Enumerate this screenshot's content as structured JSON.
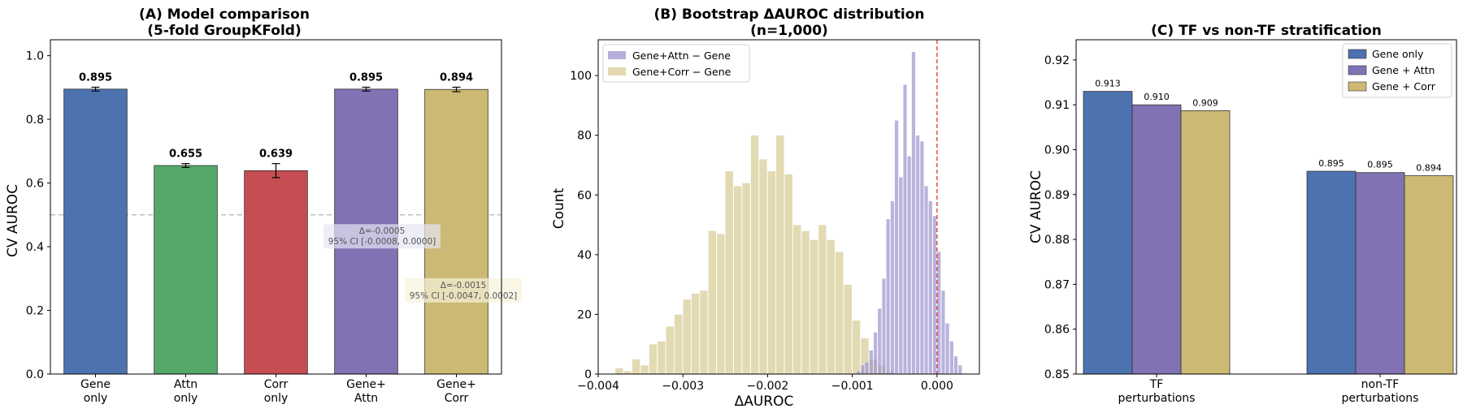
{
  "chart_data": [
    {
      "type": "bar",
      "title": "(A) Model comparison",
      "subtitle": "(5-fold GroupKFold)",
      "xlabel": "",
      "ylabel": "CV AUROC",
      "ylim": [
        0,
        1.05
      ],
      "yticks": [
        "0.0",
        "0.2",
        "0.4",
        "0.6",
        "0.8",
        "1.0"
      ],
      "categories": [
        {
          "line1": "Gene",
          "line2": "only"
        },
        {
          "line1": "Attn",
          "line2": "only"
        },
        {
          "line1": "Corr",
          "line2": "only"
        },
        {
          "line1": "Gene+",
          "line2": "Attn"
        },
        {
          "line1": "Gene+",
          "line2": "Corr"
        }
      ],
      "values": [
        0.895,
        0.655,
        0.639,
        0.895,
        0.894
      ],
      "errors": [
        0.006,
        0.006,
        0.022,
        0.006,
        0.007
      ],
      "value_labels": [
        "0.895",
        "0.655",
        "0.639",
        "0.895",
        "0.894"
      ],
      "colors": [
        "#4c72b0",
        "#55a868",
        "#c44e52",
        "#8172b3",
        "#ccb974"
      ],
      "reference_line": 0.5,
      "annotations": [
        {
          "line1": "Δ=-0.0005",
          "line2": "95% CI [-0.0008, 0.0000]",
          "y": 0.42,
          "fill": "#e6e6f5"
        },
        {
          "line1": "Δ=-0.0015",
          "line2": "95% CI [-0.0047, 0.0002]",
          "y": 0.25,
          "fill": "#f7f2dc"
        }
      ]
    },
    {
      "type": "histogram",
      "title": "(B) Bootstrap ΔAUROC distribution",
      "subtitle": "(n=1,000)",
      "xlabel": "ΔAUROC",
      "ylabel": "Count",
      "xlim": [
        -0.004,
        0.0005
      ],
      "ylim": [
        0,
        112
      ],
      "xticks": [
        "−0.004",
        "−0.003",
        "−0.002",
        "−0.001",
        "0.000"
      ],
      "yticks": [
        "0",
        "20",
        "40",
        "60",
        "80",
        "100"
      ],
      "reference_x": 0.0,
      "legend_position": "top-left",
      "series": [
        {
          "name": "Gene+Attn − Gene",
          "color": "#9d94cf",
          "bin_start": -0.00095,
          "bin_width": 5e-05,
          "counts": [
            1,
            3,
            4,
            8,
            14,
            22,
            32,
            52,
            58,
            85,
            66,
            97,
            73,
            108,
            80,
            78,
            63,
            58,
            53,
            41,
            28,
            17,
            11,
            6,
            3
          ]
        },
        {
          "name": "Gene+Corr − Gene",
          "color": "#d8cc95",
          "bin_start": -0.0038,
          "bin_width": 0.0001,
          "counts": [
            2,
            1,
            5,
            3,
            10,
            11,
            16,
            20,
            25,
            27,
            28,
            48,
            47,
            68,
            63,
            64,
            80,
            72,
            68,
            80,
            67,
            50,
            48,
            45,
            50,
            45,
            41,
            30,
            18,
            12,
            5,
            3,
            1
          ]
        }
      ]
    },
    {
      "type": "bar",
      "title": "(C) TF vs non-TF stratification",
      "xlabel": "",
      "ylabel": "CV AUROC",
      "ylim": [
        0.85,
        0.9245
      ],
      "yticks": [
        "0.85",
        "0.86",
        "0.87",
        "0.88",
        "0.89",
        "0.90",
        "0.91",
        "0.92"
      ],
      "categories": [
        {
          "line1": "TF",
          "line2": "perturbations"
        },
        {
          "line1": "non-TF",
          "line2": "perturbations"
        }
      ],
      "legend_position": "top-right",
      "series": [
        {
          "name": "Gene only",
          "color": "#4c72b0",
          "values": [
            0.913,
            0.8952
          ],
          "labels": [
            "0.913",
            "0.895"
          ]
        },
        {
          "name": "Gene + Attn",
          "color": "#8172b3",
          "values": [
            0.91,
            0.8949
          ],
          "labels": [
            "0.910",
            "0.895"
          ]
        },
        {
          "name": "Gene + Corr",
          "color": "#ccb974",
          "values": [
            0.9087,
            0.8942
          ],
          "labels": [
            "0.909",
            "0.894"
          ]
        }
      ]
    }
  ]
}
